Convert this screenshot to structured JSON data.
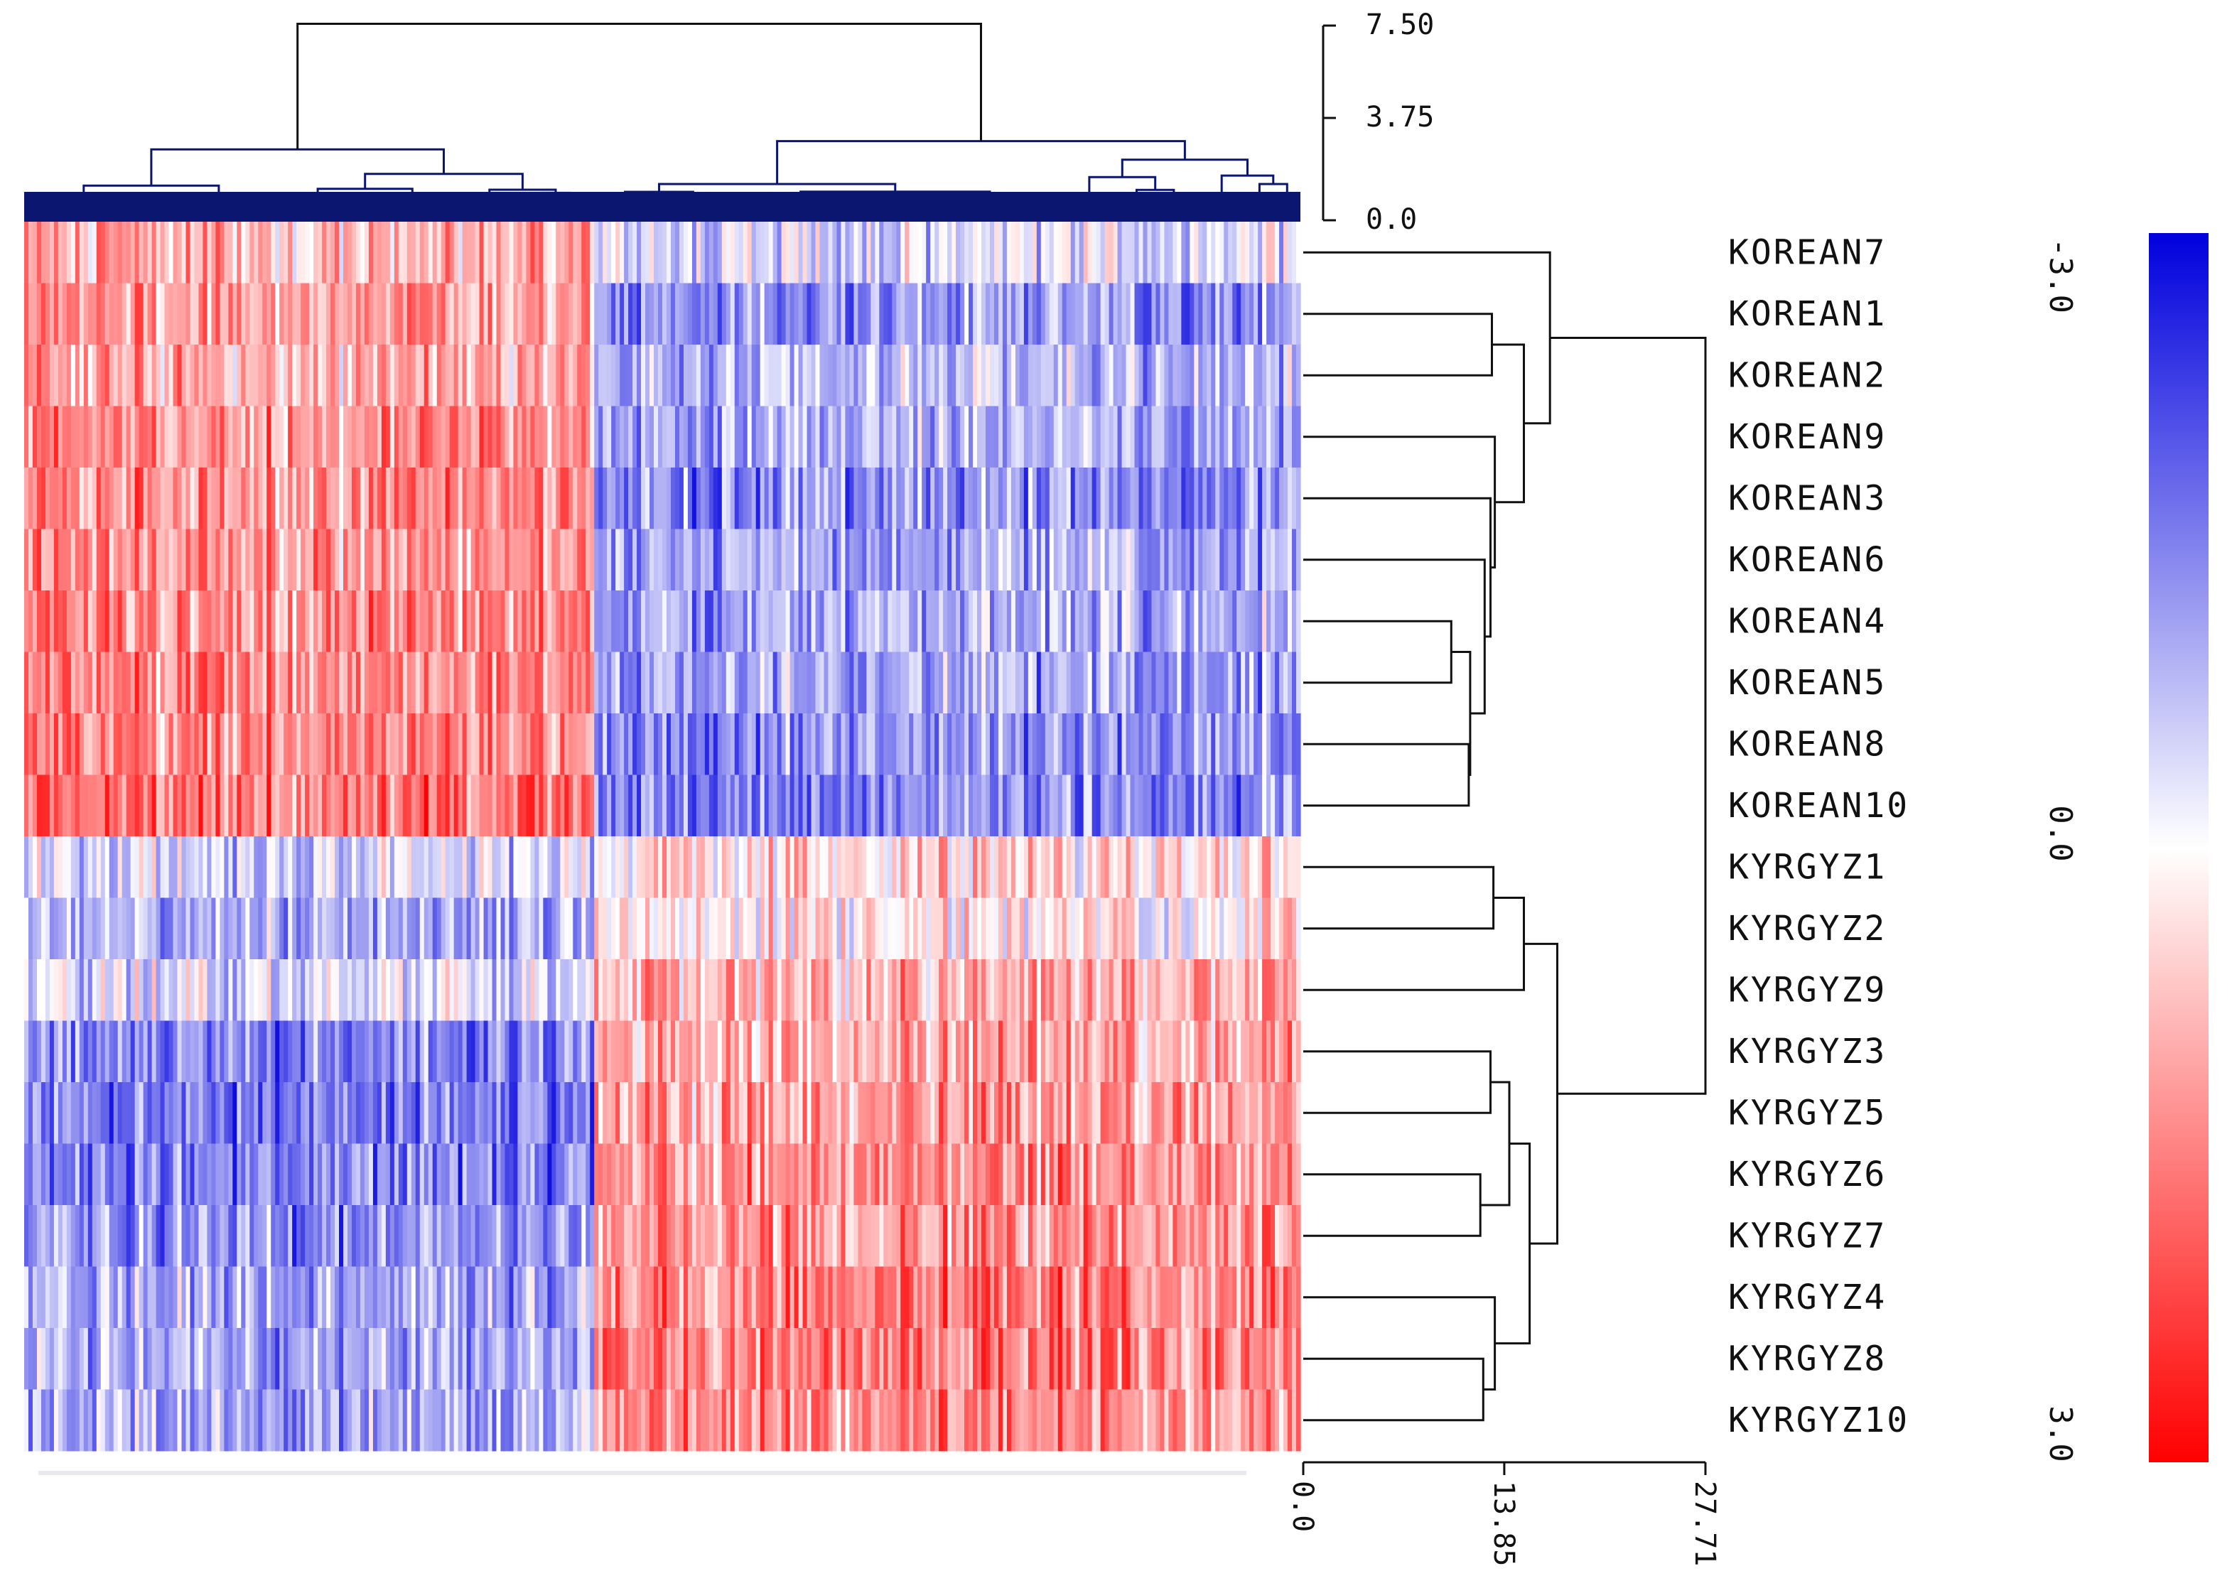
{
  "chart_data": {
    "type": "heatmap",
    "title": "",
    "rows": [
      "KOREAN7",
      "KOREAN1",
      "KOREAN2",
      "KOREAN9",
      "KOREAN3",
      "KOREAN6",
      "KOREAN4",
      "KOREAN5",
      "KOREAN8",
      "KOREAN10",
      "KYRGYZ1",
      "KYRGYZ2",
      "KYRGYZ9",
      "KYRGYZ3",
      "KYRGYZ5",
      "KYRGYZ6",
      "KYRGYZ7",
      "KYRGYZ4",
      "KYRGYZ8",
      "KYRGYZ10"
    ],
    "column_blocks": [
      {
        "fraction": 0.445,
        "row_means": [
          0.9,
          1.1,
          0.9,
          1.3,
          1.3,
          1.2,
          1.3,
          1.3,
          1.3,
          1.6,
          -0.5,
          -1.0,
          -0.4,
          -1.4,
          -1.6,
          -1.5,
          -1.3,
          -1.0,
          -1.1,
          -1.0
        ]
      },
      {
        "fraction": 0.555,
        "row_means": [
          -0.4,
          -1.2,
          -0.8,
          -1.0,
          -1.3,
          -1.0,
          -1.0,
          -1.1,
          -1.3,
          -1.4,
          0.4,
          0.3,
          0.9,
          1.0,
          1.1,
          1.3,
          1.2,
          1.5,
          1.5,
          1.3
        ]
      }
    ],
    "color_scale": {
      "min": -3.0,
      "mid": 0.0,
      "max": 3.0,
      "colors": {
        "-3.0": "#0000dd",
        "0.0": "#ffffff",
        "3.0": "#ff0000"
      },
      "tick_labels": [
        "-3.0",
        "0.0",
        "3.0"
      ]
    },
    "column_dendrogram_axis": {
      "ticks": [
        "7.50",
        "3.75",
        "0.0"
      ],
      "range": [
        0,
        7.5
      ],
      "fill_color": "#0a1670"
    },
    "row_dendrogram_axis": {
      "ticks": [
        "0.0",
        "13.85",
        "27.71"
      ],
      "range": [
        0,
        27.71
      ]
    },
    "row_tree": {
      "leaves": [
        "KOREAN7",
        "KOREAN1",
        "KOREAN2",
        "KOREAN9",
        "KOREAN3",
        "KOREAN6",
        "KOREAN4",
        "KOREAN5",
        "KOREAN8",
        "KOREAN10",
        "KYRGYZ1",
        "KYRGYZ2",
        "KYRGYZ9",
        "KYRGYZ3",
        "KYRGYZ5",
        "KYRGYZ6",
        "KYRGYZ7",
        "KYRGYZ4",
        "KYRGYZ8",
        "KYRGYZ10"
      ],
      "merges": [
        {
          "a": [
            1
          ],
          "b": [
            2
          ],
          "h": 13.0
        },
        {
          "a": [
            6
          ],
          "b": [
            7
          ],
          "h": 10.2
        },
        {
          "a": [
            8
          ],
          "b": [
            9
          ],
          "h": 11.4
        },
        {
          "a": [
            6,
            7
          ],
          "b": [
            8,
            9
          ],
          "h": 11.5
        },
        {
          "a": [
            5
          ],
          "b": [
            6,
            7,
            8,
            9
          ],
          "h": 12.5
        },
        {
          "a": [
            4
          ],
          "b": [
            5,
            6,
            7,
            8,
            9
          ],
          "h": 12.9
        },
        {
          "a": [
            3
          ],
          "b": [
            4,
            5,
            6,
            7,
            8,
            9
          ],
          "h": 13.2
        },
        {
          "a": [
            1,
            2
          ],
          "b": [
            3,
            4,
            5,
            6,
            7,
            8,
            9
          ],
          "h": 15.2
        },
        {
          "a": [
            0
          ],
          "b": [
            1,
            2,
            3,
            4,
            5,
            6,
            7,
            8,
            9
          ],
          "h": 17.0
        },
        {
          "a": [
            10
          ],
          "b": [
            11
          ],
          "h": 13.1
        },
        {
          "a": [
            10,
            11
          ],
          "b": [
            12
          ],
          "h": 15.2
        },
        {
          "a": [
            13
          ],
          "b": [
            14
          ],
          "h": 12.9
        },
        {
          "a": [
            15
          ],
          "b": [
            16
          ],
          "h": 12.2
        },
        {
          "a": [
            13,
            14
          ],
          "b": [
            15,
            16
          ],
          "h": 14.2
        },
        {
          "a": [
            18
          ],
          "b": [
            19
          ],
          "h": 12.4
        },
        {
          "a": [
            17
          ],
          "b": [
            18,
            19
          ],
          "h": 13.2
        },
        {
          "a": [
            13,
            14,
            15,
            16
          ],
          "b": [
            17,
            18,
            19
          ],
          "h": 15.6
        },
        {
          "a": [
            10,
            11,
            12
          ],
          "b": [
            13,
            14,
            15,
            16,
            17,
            18,
            19
          ],
          "h": 17.5
        },
        {
          "a": [
            0,
            1,
            2,
            3,
            4,
            5,
            6,
            7,
            8,
            9
          ],
          "b": [
            10,
            11,
            12,
            13,
            14,
            15,
            16,
            17,
            18,
            19
          ],
          "h": 27.71
        }
      ]
    }
  }
}
